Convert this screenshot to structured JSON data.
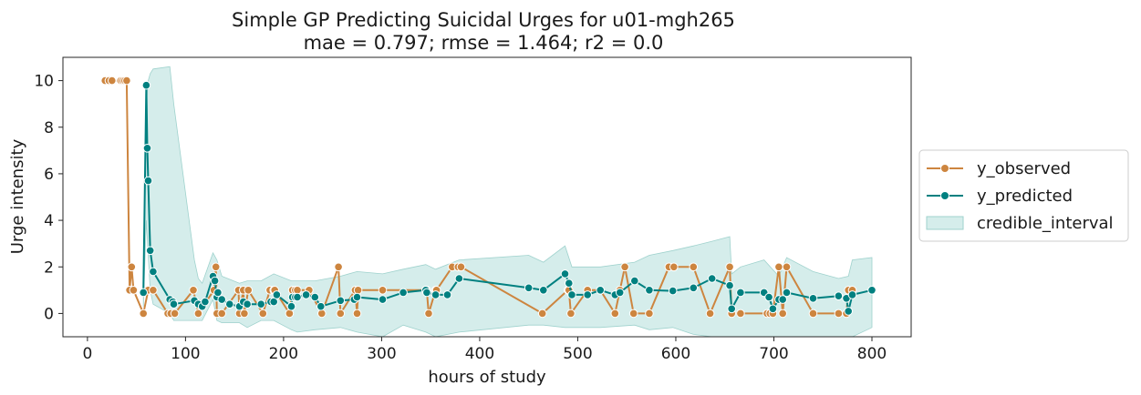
{
  "chart_data": {
    "type": "line",
    "title": "Simple GP Predicting Suicidal Urges for u01-mgh265",
    "subtitle": "mae = 0.797; rmse = 1.464; r2 = 0.0",
    "xlabel": "hours of study",
    "ylabel": "Urge intensity",
    "xlim": [
      -25,
      840
    ],
    "ylim": [
      -1,
      11
    ],
    "x_ticks": [
      0,
      100,
      200,
      300,
      400,
      500,
      600,
      700,
      800
    ],
    "y_ticks": [
      0,
      2,
      4,
      6,
      8,
      10
    ],
    "grid": false,
    "legend_position": "right",
    "colors": {
      "observed": "#cd853f",
      "predicted": "#008080",
      "interval": "#b2dfdb"
    },
    "series": [
      {
        "name": "y_observed",
        "x": [
          18,
          22,
          25,
          34,
          36,
          38,
          40,
          43,
          45,
          47,
          57,
          62,
          67,
          82,
          85,
          89,
          108,
          113,
          129,
          131,
          132,
          137,
          154,
          155,
          159,
          160,
          164,
          179,
          186,
          190,
          191,
          206,
          209,
          212,
          214,
          226,
          239,
          256,
          258,
          273,
          275,
          276,
          301,
          345,
          346,
          348,
          355,
          356,
          372,
          378,
          381,
          464,
          490,
          491,
          493,
          510,
          523,
          538,
          543,
          548,
          557,
          573,
          593,
          598,
          618,
          635,
          655,
          657,
          666,
          693,
          696,
          699,
          705,
          709,
          713,
          740,
          766,
          774,
          776,
          780
        ],
        "y": [
          10,
          10,
          10,
          10,
          10,
          10,
          10,
          1,
          2,
          1,
          0,
          1,
          1,
          0,
          0,
          0,
          1,
          0,
          1,
          2,
          0,
          0,
          1,
          0,
          1,
          0,
          1,
          0,
          1,
          1,
          1,
          0,
          1,
          1,
          1,
          1,
          0,
          2,
          0,
          1,
          0,
          1,
          1,
          1,
          1,
          0,
          1,
          1,
          2,
          2,
          2,
          0,
          1,
          1,
          0,
          1,
          1,
          0,
          1,
          2,
          0,
          0,
          2,
          2,
          2,
          0,
          2,
          0,
          0,
          0,
          0,
          0,
          2,
          0,
          2,
          0,
          0,
          0,
          1,
          1
        ]
      },
      {
        "name": "y_predicted",
        "x": [
          57,
          60,
          61,
          62,
          64,
          67,
          84,
          87,
          88,
          109,
          113,
          117,
          120,
          128,
          130,
          132,
          133,
          137,
          145,
          155,
          159,
          163,
          177,
          187,
          190,
          193,
          208,
          209,
          212,
          214,
          223,
          232,
          238,
          258,
          272,
          275,
          301,
          322,
          345,
          346,
          355,
          367,
          379,
          450,
          465,
          487,
          491,
          494,
          510,
          523,
          538,
          543,
          558,
          573,
          597,
          618,
          637,
          655,
          657,
          666,
          690,
          695,
          699,
          705,
          709,
          713,
          740,
          766,
          774,
          776,
          780,
          800
        ],
        "y": [
          0.9,
          9.8,
          7.1,
          5.7,
          2.7,
          1.8,
          0.6,
          0.5,
          0.4,
          0.55,
          0.4,
          0.3,
          0.5,
          1.6,
          1.4,
          0.7,
          0.9,
          0.6,
          0.4,
          0.3,
          0.5,
          0.4,
          0.4,
          0.5,
          0.5,
          0.8,
          0.3,
          0.7,
          0.7,
          0.7,
          0.8,
          0.7,
          0.3,
          0.55,
          0.6,
          0.7,
          0.6,
          0.9,
          1.0,
          0.9,
          0.8,
          0.8,
          1.5,
          1.1,
          1.0,
          1.7,
          1.3,
          0.8,
          0.8,
          1.0,
          0.8,
          0.9,
          1.4,
          1.0,
          0.97,
          1.1,
          1.5,
          1.2,
          0.2,
          0.9,
          0.9,
          0.7,
          0.2,
          0.6,
          0.6,
          0.9,
          0.65,
          0.75,
          0.65,
          0.1,
          0.8,
          1.0
        ]
      }
    ],
    "credible_interval": {
      "name": "credible_interval",
      "x": [
        57,
        60,
        62,
        64,
        67,
        84,
        88,
        109,
        113,
        117,
        128,
        132,
        137,
        155,
        163,
        177,
        190,
        208,
        214,
        232,
        258,
        275,
        301,
        322,
        345,
        355,
        379,
        450,
        465,
        487,
        494,
        523,
        558,
        573,
        597,
        618,
        637,
        655,
        657,
        666,
        690,
        705,
        713,
        740,
        766,
        776,
        780,
        800
      ],
      "upper": [
        1.5,
        9.0,
        10.0,
        10.3,
        10.5,
        10.6,
        9.0,
        2.3,
        1.5,
        1.3,
        2.6,
        2.3,
        1.6,
        1.3,
        1.4,
        1.4,
        1.7,
        1.4,
        1.4,
        1.4,
        1.6,
        1.8,
        1.7,
        1.9,
        2.1,
        1.9,
        2.3,
        2.5,
        2.2,
        2.9,
        2.0,
        2.0,
        2.2,
        2.5,
        2.7,
        2.9,
        3.1,
        3.3,
        1.7,
        2.0,
        2.3,
        1.6,
        2.4,
        1.8,
        1.5,
        1.6,
        2.3,
        2.4
      ],
      "lower": [
        0.3,
        4.0,
        2.5,
        1.0,
        0.4,
        0.0,
        -0.3,
        -0.3,
        -0.3,
        -0.3,
        0.6,
        -0.3,
        -0.4,
        -0.4,
        -0.6,
        -0.3,
        -0.3,
        -0.7,
        -0.8,
        -0.7,
        -0.6,
        -0.8,
        -1.0,
        -0.5,
        -0.8,
        -1.0,
        -0.8,
        -0.5,
        -0.5,
        -0.6,
        -0.6,
        -0.6,
        -0.5,
        -0.7,
        -0.6,
        -0.9,
        -1.0,
        -1.0,
        -2.0,
        -1.5,
        -1.0,
        -2.0,
        -1.2,
        -1.0,
        -1.2,
        -1.4,
        -1.0,
        -0.6
      ]
    }
  }
}
